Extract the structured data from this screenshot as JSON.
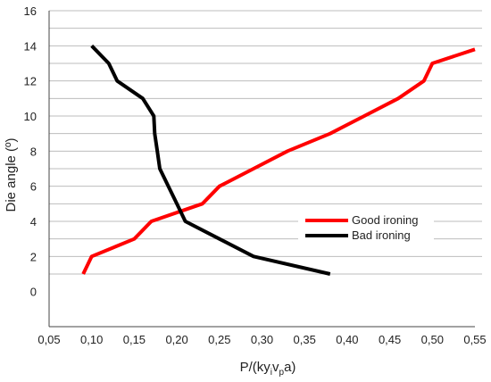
{
  "chart_data": {
    "type": "line",
    "xlabel": "P/(ky",
    "xlabel_sub1": "i",
    "xlabel_mid": "v",
    "xlabel_sub2": "p",
    "xlabel_tail": "a)",
    "ylabel": "Die angle (º)",
    "xlim": [
      0.05,
      0.55
    ],
    "ylim": [
      -2,
      16
    ],
    "x_ticks": [
      0.05,
      0.1,
      0.15,
      0.2,
      0.25,
      0.3,
      0.35,
      0.4,
      0.45,
      0.5,
      0.55
    ],
    "x_tick_labels": [
      "0,05",
      "0,10",
      "0,15",
      "0,20",
      "0,25",
      "0,30",
      "0,35",
      "0,40",
      "0,45",
      "0,50",
      "0,55"
    ],
    "y_ticks": [
      0,
      2,
      4,
      6,
      8,
      10,
      12,
      14,
      16
    ],
    "y_tick_labels": [
      "0",
      "2",
      "4",
      "6",
      "8",
      "10",
      "12",
      "14",
      "16"
    ],
    "grid": "horizontal lines at 1-unit intervals from 1 to 16",
    "legend_position": "middle-right",
    "series": [
      {
        "name": "Good ironing",
        "color": "#ff0000",
        "points": [
          [
            0.09,
            1.0
          ],
          [
            0.1,
            2.0
          ],
          [
            0.15,
            3.0
          ],
          [
            0.17,
            4.0
          ],
          [
            0.23,
            5.0
          ],
          [
            0.25,
            6.0
          ],
          [
            0.29,
            7.0
          ],
          [
            0.33,
            8.0
          ],
          [
            0.38,
            9.0
          ],
          [
            0.42,
            10.0
          ],
          [
            0.46,
            11.0
          ],
          [
            0.49,
            12.0
          ],
          [
            0.5,
            13.0
          ],
          [
            0.55,
            13.8
          ]
        ]
      },
      {
        "name": "Bad ironing",
        "color": "#000000",
        "points": [
          [
            0.1,
            14.0
          ],
          [
            0.12,
            13.0
          ],
          [
            0.13,
            12.0
          ],
          [
            0.16,
            11.0
          ],
          [
            0.173,
            10.0
          ],
          [
            0.174,
            9.0
          ],
          [
            0.177,
            8.0
          ],
          [
            0.18,
            7.0
          ],
          [
            0.19,
            6.0
          ],
          [
            0.2,
            5.0
          ],
          [
            0.21,
            4.0
          ],
          [
            0.25,
            3.0
          ],
          [
            0.29,
            2.0
          ],
          [
            0.38,
            1.0
          ]
        ]
      }
    ]
  }
}
